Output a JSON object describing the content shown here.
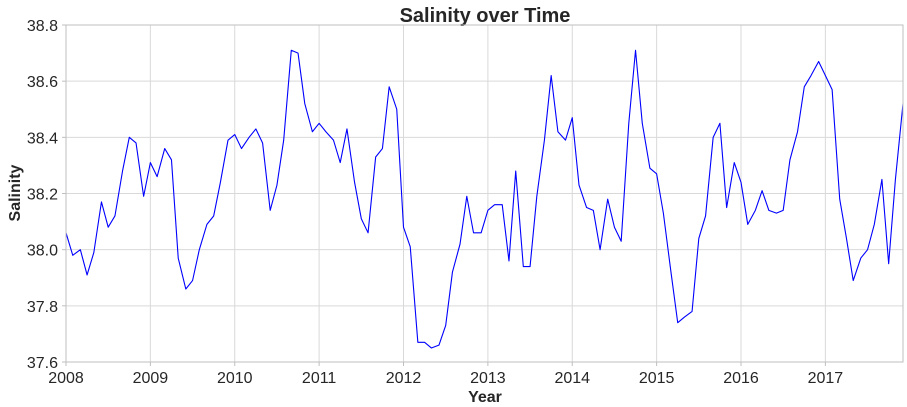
{
  "chart_data": {
    "type": "line",
    "title": "Salinity over Time",
    "xlabel": "Year",
    "ylabel": "Salinity",
    "xlim": [
      2008.0,
      2017.92
    ],
    "ylim": [
      37.6,
      38.8
    ],
    "grid": true,
    "line_color": "#0000ff",
    "x_ticks": [
      2008,
      2009,
      2010,
      2011,
      2012,
      2013,
      2014,
      2015,
      2016,
      2017
    ],
    "x_tick_labels": [
      "2008",
      "2009",
      "2010",
      "2011",
      "2012",
      "2013",
      "2014",
      "2015",
      "2016",
      "2017"
    ],
    "y_ticks": [
      37.6,
      37.8,
      38.0,
      38.2,
      38.4,
      38.6,
      38.8
    ],
    "y_tick_labels": [
      "37.6",
      "37.8",
      "38.0",
      "38.2",
      "38.4",
      "38.6",
      "38.8"
    ],
    "series": [
      {
        "x": [
          2008.0,
          2008.08,
          2008.17,
          2008.25,
          2008.33,
          2008.42,
          2008.5,
          2008.58,
          2008.67,
          2008.75,
          2008.83,
          2008.92,
          2009.0,
          2009.08,
          2009.17,
          2009.25,
          2009.33,
          2009.42,
          2009.5,
          2009.58,
          2009.67,
          2009.75,
          2009.83,
          2009.92,
          2010.0,
          2010.08,
          2010.17,
          2010.25,
          2010.33,
          2010.42,
          2010.5,
          2010.58,
          2010.67,
          2010.75,
          2010.83,
          2010.92,
          2011.0,
          2011.08,
          2011.17,
          2011.25,
          2011.33,
          2011.42,
          2011.5,
          2011.58,
          2011.67,
          2011.75,
          2011.83,
          2011.92,
          2012.0,
          2012.08,
          2012.17,
          2012.25,
          2012.33,
          2012.42,
          2012.5,
          2012.58,
          2012.67,
          2012.75,
          2012.83,
          2012.92,
          2013.0,
          2013.08,
          2013.17,
          2013.25,
          2013.33,
          2013.42,
          2013.5,
          2013.58,
          2013.67,
          2013.75,
          2013.83,
          2013.92,
          2014.0,
          2014.08,
          2014.17,
          2014.25,
          2014.33,
          2014.42,
          2014.5,
          2014.58,
          2014.67,
          2014.75,
          2014.83,
          2014.92,
          2015.0,
          2015.08,
          2015.17,
          2015.25,
          2015.33,
          2015.42,
          2015.5,
          2015.58,
          2015.67,
          2015.75,
          2015.83,
          2015.92,
          2016.0,
          2016.08,
          2016.17,
          2016.25,
          2016.33,
          2016.42,
          2016.5,
          2016.58,
          2016.67,
          2016.75,
          2016.83,
          2016.92,
          2017.0,
          2017.08,
          2017.17,
          2017.25,
          2017.33,
          2017.42,
          2017.5,
          2017.58,
          2017.67,
          2017.75,
          2017.83,
          2017.92
        ],
        "values": [
          38.06,
          37.98,
          38.0,
          37.91,
          37.99,
          38.17,
          38.08,
          38.12,
          38.28,
          38.4,
          38.38,
          38.19,
          38.31,
          38.26,
          38.36,
          38.32,
          37.97,
          37.86,
          37.89,
          38.0,
          38.09,
          38.12,
          38.24,
          38.39,
          38.41,
          38.36,
          38.4,
          38.43,
          38.38,
          38.14,
          38.23,
          38.39,
          38.71,
          38.7,
          38.52,
          38.42,
          38.45,
          38.42,
          38.39,
          38.31,
          38.43,
          38.24,
          38.11,
          38.06,
          38.33,
          38.36,
          38.58,
          38.5,
          38.08,
          38.01,
          37.67,
          37.67,
          37.65,
          37.66,
          37.73,
          37.92,
          38.02,
          38.19,
          38.06,
          38.06,
          38.14,
          38.16,
          38.16,
          37.96,
          38.28,
          37.94,
          37.94,
          38.19,
          38.39,
          38.62,
          38.42,
          38.39,
          38.47,
          38.23,
          38.15,
          38.14,
          38.0,
          38.18,
          38.08,
          38.03,
          38.45,
          38.71,
          38.45,
          38.29,
          38.27,
          38.13,
          37.92,
          37.74,
          37.76,
          37.78,
          38.04,
          38.12,
          38.4,
          38.45,
          38.15,
          38.31,
          38.24,
          38.09,
          38.14,
          38.21,
          38.14,
          38.13,
          38.14,
          38.32,
          38.42,
          38.58,
          38.62,
          38.67,
          38.62,
          38.57,
          38.18,
          38.04,
          37.89,
          37.97,
          38.0,
          38.09,
          38.25,
          37.95,
          38.25,
          38.52
        ]
      }
    ]
  }
}
